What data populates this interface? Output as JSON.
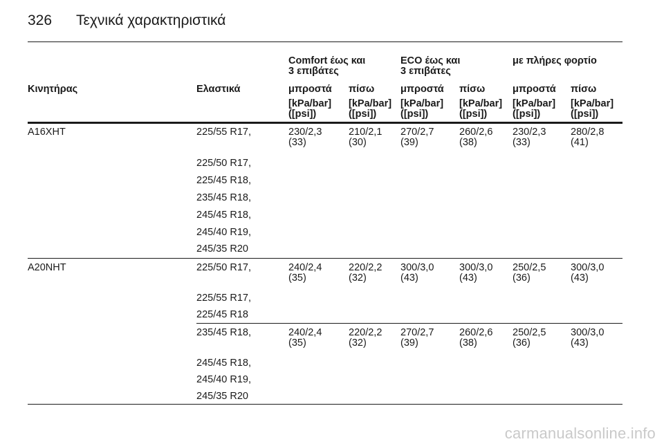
{
  "page": {
    "number": "326",
    "title": "Τεχνικά χαρακτηριστικά"
  },
  "table": {
    "groups": [
      {
        "line1": "Comfort έως και",
        "line2": "3 επιβάτες"
      },
      {
        "line1": "ECO έως και",
        "line2": "3 επιβάτες"
      },
      {
        "line1": "με πλήρες φορτίο",
        "line2": ""
      }
    ],
    "col_engine": "Κινητήρας",
    "col_tires": "Ελαστικά",
    "sub_front": "μπροστά",
    "sub_rear": "πίσω",
    "unit_line1": "[kPa/bar]",
    "unit_line2": "([psi])",
    "rows": [
      {
        "engine": "A16XHT",
        "tires": [
          "225/55 R17,",
          "225/50 R17,",
          "225/45 R18,",
          "235/45 R18,",
          "245/45 R18,",
          "245/40 R19,",
          "245/35 R20"
        ],
        "values": [
          {
            "a": "230/2,3",
            "b": "(33)"
          },
          {
            "a": "210/2,1",
            "b": "(30)"
          },
          {
            "a": "270/2,7",
            "b": "(39)"
          },
          {
            "a": "260/2,6",
            "b": "(38)"
          },
          {
            "a": "230/2,3",
            "b": "(33)"
          },
          {
            "a": "280/2,8",
            "b": "(41)"
          }
        ]
      },
      {
        "engine": "A20NHT",
        "tires": [
          "225/50 R17,",
          "225/55 R17,",
          "225/45 R18"
        ],
        "values": [
          {
            "a": "240/2,4",
            "b": "(35)"
          },
          {
            "a": "220/2,2",
            "b": "(32)"
          },
          {
            "a": "300/3,0",
            "b": "(43)"
          },
          {
            "a": "300/3,0",
            "b": "(43)"
          },
          {
            "a": "250/2,5",
            "b": "(36)"
          },
          {
            "a": "300/3,0",
            "b": "(43)"
          }
        ]
      },
      {
        "engine": "",
        "tires": [
          "235/45 R18,",
          "245/45 R18,",
          "245/40 R19,",
          "245/35 R20"
        ],
        "values": [
          {
            "a": "240/2,4",
            "b": "(35)"
          },
          {
            "a": "220/2,2",
            "b": "(32)"
          },
          {
            "a": "270/2,7",
            "b": "(39)"
          },
          {
            "a": "260/2,6",
            "b": "(38)"
          },
          {
            "a": "250/2,5",
            "b": "(36)"
          },
          {
            "a": "300/3,0",
            "b": "(43)"
          }
        ]
      }
    ]
  },
  "watermark": "carmanualsonline.info"
}
